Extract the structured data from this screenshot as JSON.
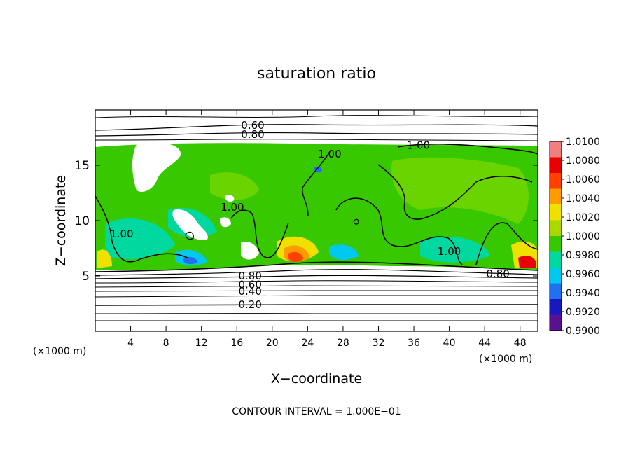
{
  "chart_data": {
    "type": "heatmap",
    "title": "saturation ratio",
    "xlabel": "X−coordinate",
    "ylabel": "Z−coordinate",
    "x_unit_left": "(×1000 m)",
    "x_unit_right": "(×1000 m)",
    "footer": "CONTOUR INTERVAL = 1.000E−01",
    "xlim": [
      0,
      50
    ],
    "ylim": [
      0,
      20
    ],
    "x_ticks": [
      4,
      8,
      12,
      16,
      20,
      24,
      28,
      32,
      36,
      40,
      44,
      48
    ],
    "y_ticks": [
      5,
      10,
      15
    ],
    "colorbar": {
      "labels": [
        "1.0100",
        "1.0080",
        "1.0060",
        "1.0040",
        "1.0020",
        "1.0000",
        "0.9980",
        "0.9960",
        "0.9940",
        "0.9920",
        "0.9900"
      ],
      "colors": [
        "#f08080",
        "#e80000",
        "#ff4000",
        "#ff9a00",
        "#f0e000",
        "#a8d800",
        "#38c800",
        "#00d8a0",
        "#00c8f0",
        "#2070f0",
        "#1818c0",
        "#5a1090"
      ]
    },
    "contour_labels": [
      {
        "text": "0.60",
        "x": 17.8,
        "z": 18.6
      },
      {
        "text": "0.80",
        "x": 17.8,
        "z": 17.8
      },
      {
        "text": "1.00",
        "x": 36.5,
        "z": 16.8
      },
      {
        "text": "1.00",
        "x": 26.5,
        "z": 16.0
      },
      {
        "text": "1.00",
        "x": 15.5,
        "z": 11.2
      },
      {
        "text": "1.00",
        "x": 3.0,
        "z": 8.8
      },
      {
        "text": "1.00",
        "x": 40.0,
        "z": 7.2
      },
      {
        "text": "0.80",
        "x": 17.5,
        "z": 5.0
      },
      {
        "text": "0.60",
        "x": 17.5,
        "z": 4.2
      },
      {
        "text": "0.40",
        "x": 17.5,
        "z": 3.6
      },
      {
        "text": "0.20",
        "x": 17.5,
        "z": 2.4
      },
      {
        "text": "0.80",
        "x": 45.5,
        "z": 5.2
      }
    ]
  }
}
